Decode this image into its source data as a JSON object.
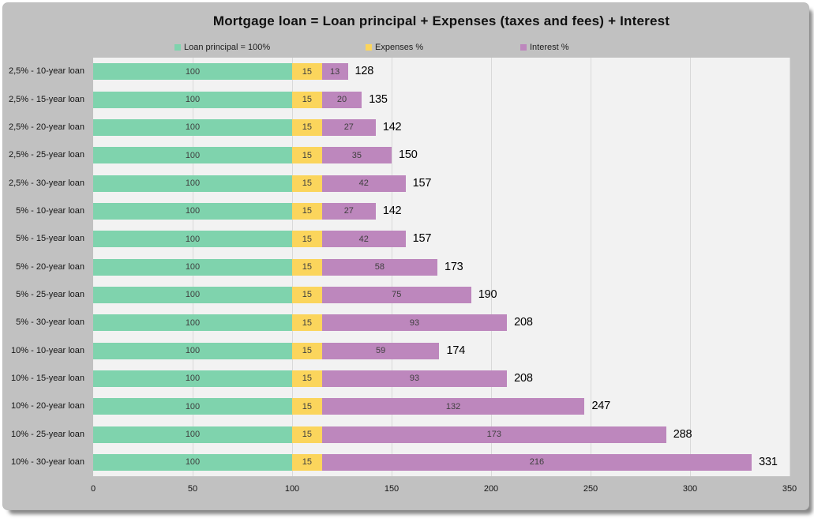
{
  "title": "Mortgage loan = Loan principal + Expenses (taxes and fees) + Interest",
  "chart_data": {
    "type": "bar",
    "orientation": "horizontal",
    "stacked": true,
    "title": "Mortgage loan = Loan principal + Expenses (taxes and fees) + Interest",
    "categories": [
      "2,5% - 10-year loan",
      "2,5% - 15-year loan",
      "2,5% - 20-year loan",
      "2,5% - 25-year loan",
      "2,5% - 30-year loan",
      "5% - 10-year loan",
      "5% - 15-year loan",
      "5% - 20-year loan",
      "5% - 25-year loan",
      "5% - 30-year loan",
      "10% - 10-year loan",
      "10% - 15-year loan",
      "10% - 20-year loan",
      "10% - 25-year loan",
      "10% - 30-year loan"
    ],
    "series": [
      {
        "name": "Loan principal = 100%",
        "color": "#7fd3ad",
        "values": [
          100,
          100,
          100,
          100,
          100,
          100,
          100,
          100,
          100,
          100,
          100,
          100,
          100,
          100,
          100
        ]
      },
      {
        "name": "Expenses %",
        "color": "#fbd55c",
        "values": [
          15,
          15,
          15,
          15,
          15,
          15,
          15,
          15,
          15,
          15,
          15,
          15,
          15,
          15,
          15
        ]
      },
      {
        "name": "Interest %",
        "color": "#bd87bd",
        "values": [
          13,
          20,
          27,
          35,
          42,
          27,
          42,
          58,
          75,
          93,
          59,
          93,
          132,
          173,
          216
        ]
      }
    ],
    "totals": [
      128,
      135,
      142,
      150,
      157,
      142,
      157,
      173,
      190,
      208,
      174,
      208,
      247,
      288,
      331
    ],
    "x_ticks": [
      0,
      50,
      100,
      150,
      200,
      250,
      300,
      350
    ],
    "xlim": [
      0,
      350
    ],
    "grid": true,
    "legend_position": "top",
    "plot_background": "#f2f2f2",
    "chart_background": "#c1c1c1",
    "gridline_color": "#d9d9d9"
  }
}
